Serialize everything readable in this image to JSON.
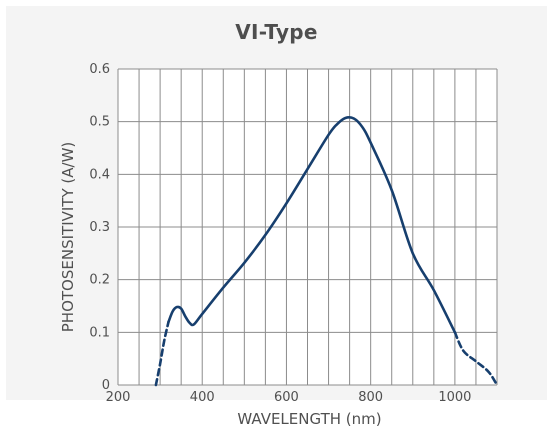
{
  "chart_data": {
    "type": "line",
    "title": "VI-Type",
    "xlabel": "WAVELENGTH (nm)",
    "ylabel": "PHOTOSENSITIVITY (A/W)",
    "xlim": [
      200,
      1100
    ],
    "ylim": [
      0,
      0.6
    ],
    "x_ticks": [
      "200",
      "400",
      "600",
      "800",
      "1000"
    ],
    "y_ticks": [
      "0",
      "0.1",
      "0.2",
      "0.3",
      "0.4",
      "0.5",
      "0.6"
    ],
    "grid": true,
    "colors": {
      "line": "#173f6e",
      "grid": "#8c8c8c",
      "panel": "#f4f4f4"
    },
    "series": [
      {
        "style": "dashed",
        "x": [
          290,
          300,
          310,
          320
        ],
        "y": [
          0.0,
          0.04,
          0.085,
          0.12
        ]
      },
      {
        "style": "solid",
        "x": [
          320,
          330,
          340,
          350,
          360,
          370,
          380,
          400,
          450,
          500,
          550,
          600,
          650,
          700,
          720,
          740,
          760,
          780,
          800,
          850,
          900,
          950,
          1000
        ],
        "y": [
          0.12,
          0.14,
          0.148,
          0.145,
          0.13,
          0.118,
          0.115,
          0.135,
          0.185,
          0.232,
          0.285,
          0.345,
          0.41,
          0.475,
          0.495,
          0.507,
          0.506,
          0.49,
          0.46,
          0.37,
          0.25,
          0.18,
          0.1
        ]
      },
      {
        "style": "dashed",
        "x": [
          1000,
          1020,
          1050,
          1080,
          1100
        ],
        "y": [
          0.1,
          0.065,
          0.045,
          0.025,
          0.0
        ]
      }
    ]
  }
}
